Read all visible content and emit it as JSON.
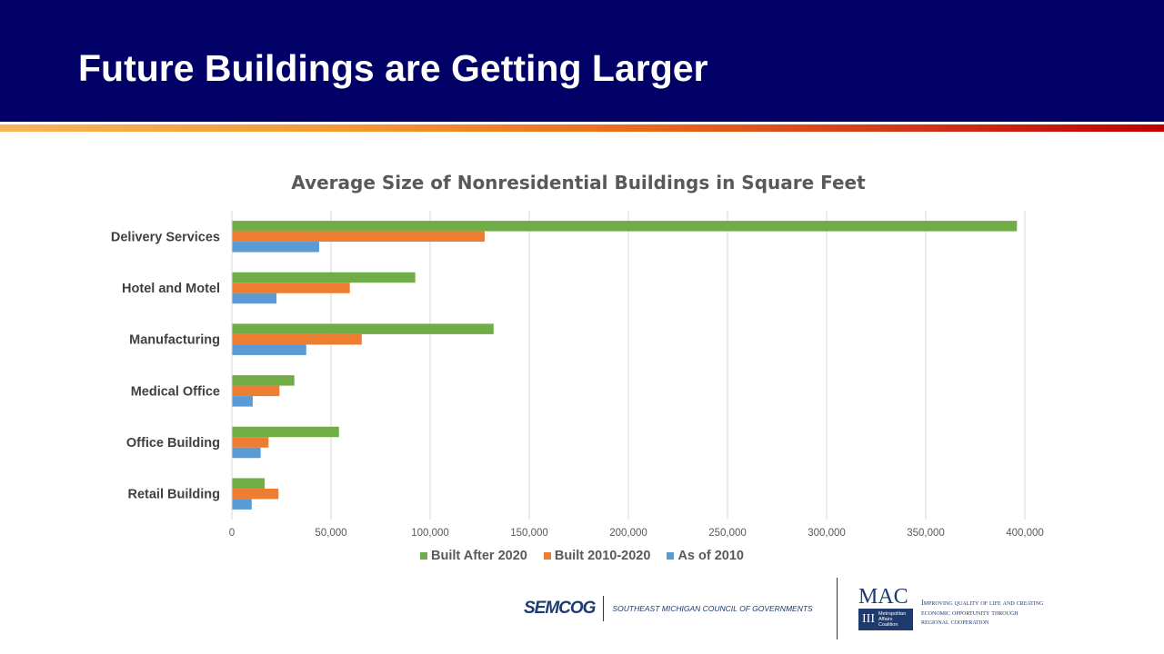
{
  "slide": {
    "title": "Future Buildings are Getting Larger"
  },
  "colors": {
    "header_bg": "#000066",
    "built_after_2020": "#70ad47",
    "built_2010_2020": "#ed7d31",
    "as_of_2010": "#5b9bd5"
  },
  "chart_data": {
    "type": "bar",
    "orientation": "horizontal",
    "title": "Average Size of Nonresidential Buildings in Square Feet",
    "categories": [
      "Delivery Services",
      "Hotel and Motel",
      "Manufacturing",
      "Medical Office",
      "Office Building",
      "Retail Building"
    ],
    "series": [
      {
        "name": "Built After 2020",
        "color": "#70ad47",
        "values": [
          396000,
          92500,
          132000,
          31500,
          54000,
          16500
        ]
      },
      {
        "name": "Built 2010-2020",
        "color": "#ed7d31",
        "values": [
          127500,
          59500,
          65500,
          24000,
          18500,
          23500
        ]
      },
      {
        "name": "As of 2010",
        "color": "#5b9bd5",
        "values": [
          44000,
          22500,
          37500,
          10500,
          14500,
          10000
        ]
      }
    ],
    "xlim": [
      0,
      400000
    ],
    "xticks": [
      0,
      50000,
      100000,
      150000,
      200000,
      250000,
      300000,
      350000,
      400000
    ],
    "xtick_labels": [
      "0",
      "50,000",
      "100,000",
      "150,000",
      "200,000",
      "250,000",
      "300,000",
      "350,000",
      "400,000"
    ],
    "grid": true,
    "legend_position": "bottom"
  },
  "legend": {
    "items": [
      {
        "label": "Built After 2020",
        "color": "#70ad47"
      },
      {
        "label": "Built 2010-2020",
        "color": "#ed7d31"
      },
      {
        "label": "As of 2010",
        "color": "#5b9bd5"
      }
    ]
  },
  "footer": {
    "semcog_logo": "SEMCOG",
    "semcog_name": "SOUTHEAST MICHIGAN COUNCIL OF GOVERNMENTS",
    "mac_logo": "MAC",
    "mac_bars": "III",
    "mac_line1": "Metropolitan",
    "mac_line2": "Affairs",
    "mac_line3": "Coalition",
    "mac_tagline_1": "Improving quality of life and creating",
    "mac_tagline_2": "economic opportunity through",
    "mac_tagline_3": "regional cooperation"
  }
}
